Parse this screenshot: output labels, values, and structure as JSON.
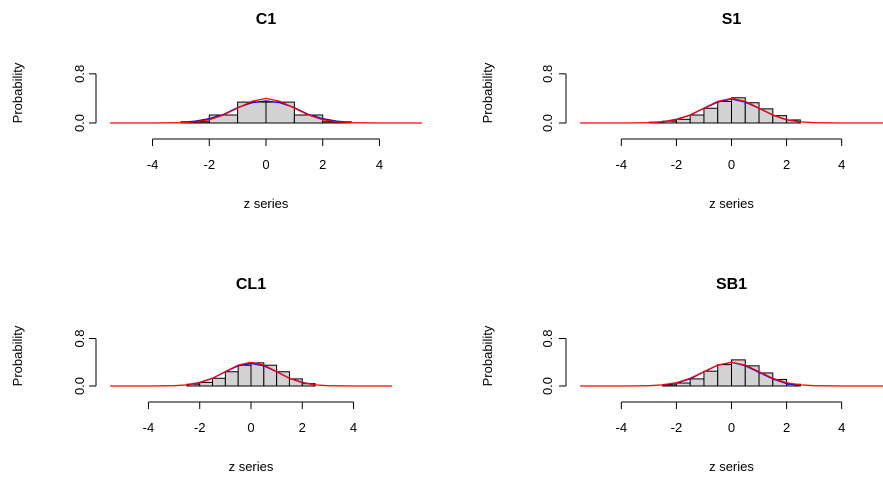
{
  "colors": {
    "background": "#ffffff",
    "bar_fill": "#d3d3d3",
    "bar_stroke": "#000000",
    "axis": "#000000",
    "normal_curve": "#ff0000",
    "kde_curve": "#0000ff"
  },
  "chart_data": [
    {
      "type": "bar",
      "title": "C1",
      "xlabel": "z series",
      "ylabel": "Probability",
      "xlim": [
        -5.5,
        5.5
      ],
      "ylim": [
        0,
        0.96
      ],
      "xticks": [
        -4,
        -2,
        0,
        2,
        4
      ],
      "yticks": [
        0.0,
        0.8
      ],
      "ytick_labels": [
        "0.0",
        "0.8"
      ],
      "histogram": {
        "breaks": [
          -3,
          -2,
          -1,
          0,
          1,
          2,
          3
        ],
        "density": [
          0.02,
          0.13,
          0.34,
          0.34,
          0.13,
          0.02
        ]
      },
      "series": [
        {
          "x": [
            -3,
            -2.5,
            -2,
            -1.5,
            -1,
            -0.5,
            0,
            0.5,
            1,
            1.5,
            2,
            2.5,
            3
          ],
          "values": [
            0.01,
            0.03,
            0.07,
            0.14,
            0.25,
            0.33,
            0.36,
            0.33,
            0.25,
            0.14,
            0.07,
            0.03,
            0.01
          ]
        },
        {
          "x": [
            -5.5,
            -4,
            -3,
            -2.5,
            -2,
            -1.5,
            -1,
            -0.5,
            0,
            0.5,
            1,
            1.5,
            2,
            2.5,
            3,
            4,
            5.5
          ],
          "values": [
            0,
            0,
            0.005,
            0.018,
            0.054,
            0.13,
            0.242,
            0.352,
            0.4,
            0.352,
            0.242,
            0.13,
            0.054,
            0.018,
            0.005,
            0,
            0
          ]
        }
      ]
    },
    {
      "type": "bar",
      "title": "S1",
      "xlabel": "z series",
      "ylabel": "Probability",
      "xlim": [
        -5.5,
        5.5
      ],
      "ylim": [
        0,
        0.96
      ],
      "xticks": [
        -4,
        -2,
        0,
        2,
        4
      ],
      "yticks": [
        0.0,
        0.8
      ],
      "ytick_labels": [
        "0.0",
        "0.8"
      ],
      "histogram": {
        "breaks": [
          -3,
          -2.5,
          -2,
          -1.5,
          -1,
          -0.5,
          0,
          0.5,
          1,
          1.5,
          2,
          2.5
        ],
        "density": [
          0.01,
          0.03,
          0.06,
          0.13,
          0.24,
          0.35,
          0.41,
          0.33,
          0.23,
          0.12,
          0.05
        ]
      },
      "series": [
        {
          "x": [
            -3,
            -2.5,
            -2,
            -1.5,
            -1,
            -0.5,
            0,
            0.5,
            1,
            1.5,
            2,
            2.5
          ],
          "values": [
            0.01,
            0.02,
            0.06,
            0.13,
            0.24,
            0.34,
            0.39,
            0.34,
            0.24,
            0.13,
            0.05,
            0.02
          ]
        },
        {
          "x": [
            -5.5,
            -4,
            -3,
            -2.5,
            -2,
            -1.5,
            -1,
            -0.5,
            0,
            0.5,
            1,
            1.5,
            2,
            2.5,
            3,
            4,
            5.5
          ],
          "values": [
            0,
            0,
            0.005,
            0.018,
            0.054,
            0.13,
            0.242,
            0.352,
            0.4,
            0.352,
            0.242,
            0.13,
            0.054,
            0.018,
            0.005,
            0,
            0
          ]
        }
      ]
    },
    {
      "type": "bar",
      "title": "CL1",
      "xlabel": "z series",
      "ylabel": "Probability",
      "xlim": [
        -5.5,
        5.5
      ],
      "ylim": [
        0,
        0.96
      ],
      "xticks": [
        -4,
        -2,
        0,
        2,
        4
      ],
      "yticks": [
        0.0,
        0.8
      ],
      "ytick_labels": [
        "0.0",
        "0.8"
      ],
      "histogram": {
        "breaks": [
          -2.5,
          -2,
          -1.5,
          -1,
          -0.5,
          0,
          0.5,
          1,
          1.5,
          2,
          2.5
        ],
        "density": [
          0.03,
          0.06,
          0.13,
          0.24,
          0.35,
          0.39,
          0.35,
          0.24,
          0.12,
          0.04
        ]
      },
      "series": [
        {
          "x": [
            -2.5,
            -2,
            -1.5,
            -1,
            -0.5,
            0,
            0.5,
            1,
            1.5,
            2,
            2.5
          ],
          "values": [
            0.02,
            0.06,
            0.13,
            0.24,
            0.34,
            0.38,
            0.34,
            0.24,
            0.13,
            0.06,
            0.02
          ]
        },
        {
          "x": [
            -5.5,
            -4,
            -3,
            -2.5,
            -2,
            -1.5,
            -1,
            -0.5,
            0,
            0.5,
            1,
            1.5,
            2,
            2.5,
            3,
            4,
            5.5
          ],
          "values": [
            0,
            0,
            0.005,
            0.018,
            0.054,
            0.13,
            0.242,
            0.352,
            0.4,
            0.352,
            0.242,
            0.13,
            0.054,
            0.018,
            0.005,
            0,
            0
          ]
        }
      ]
    },
    {
      "type": "bar",
      "title": "SB1",
      "xlabel": "z series",
      "ylabel": "Probability",
      "xlim": [
        -5.5,
        5.5
      ],
      "ylim": [
        0,
        0.96
      ],
      "xticks": [
        -4,
        -2,
        0,
        2,
        4
      ],
      "yticks": [
        0.0,
        0.8
      ],
      "ytick_labels": [
        "0.0",
        "0.8"
      ],
      "histogram": {
        "breaks": [
          -2.5,
          -2,
          -1.5,
          -1,
          -0.5,
          0,
          0.5,
          1,
          1.5,
          2,
          2.5
        ],
        "density": [
          0.02,
          0.05,
          0.12,
          0.25,
          0.36,
          0.44,
          0.34,
          0.22,
          0.11,
          0.03
        ]
      },
      "series": [
        {
          "x": [
            -2.5,
            -2,
            -1.5,
            -1,
            -0.5,
            0,
            0.5,
            1,
            1.5,
            2,
            2.5
          ],
          "values": [
            0.02,
            0.05,
            0.12,
            0.24,
            0.35,
            0.4,
            0.34,
            0.23,
            0.12,
            0.04,
            0.01
          ]
        },
        {
          "x": [
            -5.5,
            -4,
            -3,
            -2.5,
            -2,
            -1.5,
            -1,
            -0.5,
            0,
            0.5,
            1,
            1.5,
            2,
            2.5,
            3,
            4,
            5.5
          ],
          "values": [
            0,
            0,
            0.005,
            0.018,
            0.054,
            0.13,
            0.242,
            0.352,
            0.4,
            0.352,
            0.242,
            0.13,
            0.054,
            0.018,
            0.005,
            0,
            0
          ]
        }
      ]
    }
  ]
}
